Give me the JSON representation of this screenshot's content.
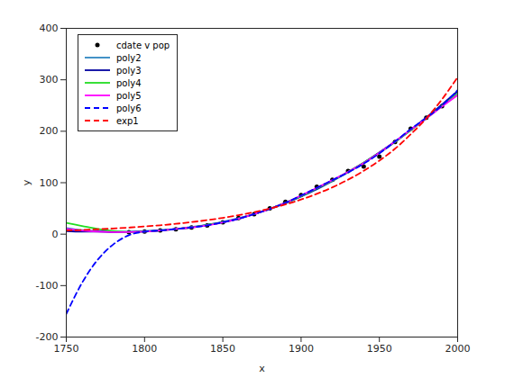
{
  "chart_data": {
    "type": "line",
    "x_label": "x",
    "y_label": "y",
    "xlim": [
      1750,
      2000
    ],
    "xticks": [
      1750,
      1800,
      1850,
      1900,
      1950,
      2000
    ],
    "ylim": [
      -200,
      400
    ],
    "yticks": [
      -200,
      -100,
      0,
      100,
      200,
      300,
      400
    ],
    "grid": false,
    "legend": "top-left",
    "series": [
      {
        "name": "cdate v pop",
        "type": "scatter",
        "marker": "dot",
        "color": "#000000",
        "x": [
          1790,
          1800,
          1810,
          1820,
          1830,
          1840,
          1850,
          1860,
          1870,
          1880,
          1890,
          1900,
          1910,
          1920,
          1930,
          1940,
          1950,
          1960,
          1970,
          1980,
          1990
        ],
        "values": [
          3.9,
          5.3,
          7.2,
          9.6,
          12.9,
          17.1,
          23.1,
          31.4,
          38.6,
          50.2,
          62.9,
          76.0,
          92.0,
          105.7,
          122.8,
          131.7,
          150.7,
          179.0,
          205.0,
          226.5,
          248.7
        ]
      },
      {
        "name": "poly2",
        "type": "line",
        "line_style": "solid",
        "color": "#2e86c1",
        "x": [
          1750,
          1760,
          1770,
          1780,
          1790,
          1800,
          1810,
          1820,
          1830,
          1840,
          1850,
          1860,
          1870,
          1880,
          1890,
          1900,
          1910,
          1920,
          1930,
          1940,
          1950,
          1960,
          1970,
          1980,
          1990,
          2000
        ],
        "values": [
          12,
          8,
          6,
          5,
          5,
          6,
          8,
          10,
          14,
          18,
          24,
          31,
          39,
          49,
          60,
          73,
          87,
          103,
          120,
          138,
          158,
          179,
          202,
          226,
          251,
          276
        ]
      },
      {
        "name": "poly3",
        "type": "line",
        "line_style": "solid",
        "color": "#0000a0",
        "x": [
          1750,
          1760,
          1770,
          1780,
          1790,
          1800,
          1810,
          1820,
          1830,
          1840,
          1850,
          1860,
          1870,
          1880,
          1890,
          1900,
          1910,
          1920,
          1930,
          1940,
          1950,
          1960,
          1970,
          1980,
          1990,
          2000
        ],
        "values": [
          6,
          5,
          5,
          4,
          4,
          5,
          7,
          10,
          13,
          18,
          23,
          30,
          39,
          49,
          61,
          74,
          88,
          104,
          121,
          139,
          159,
          180,
          203,
          227,
          252,
          278
        ]
      },
      {
        "name": "poly4",
        "type": "line",
        "line_style": "solid",
        "color": "#22dd22",
        "x": [
          1750,
          1760,
          1770,
          1780,
          1790,
          1800,
          1810,
          1820,
          1830,
          1840,
          1850,
          1860,
          1870,
          1880,
          1890,
          1900,
          1910,
          1920,
          1930,
          1940,
          1950,
          1960,
          1970,
          1980,
          1990,
          2000
        ],
        "values": [
          22,
          16,
          10,
          6,
          4,
          5,
          7,
          10,
          13,
          18,
          23,
          30,
          39,
          49,
          61,
          74,
          89,
          104,
          121,
          139,
          158,
          179,
          202,
          225,
          249,
          272
        ]
      },
      {
        "name": "poly5",
        "type": "line",
        "line_style": "solid",
        "color": "#ff00ff",
        "x": [
          1750,
          1760,
          1770,
          1780,
          1790,
          1800,
          1810,
          1820,
          1830,
          1840,
          1850,
          1860,
          1870,
          1880,
          1890,
          1900,
          1910,
          1920,
          1930,
          1940,
          1950,
          1960,
          1970,
          1980,
          1990,
          2000
        ],
        "values": [
          10,
          7,
          5,
          4,
          4,
          5,
          7,
          10,
          13,
          17,
          23,
          30,
          39,
          49,
          61,
          75,
          90,
          105,
          121,
          138,
          158,
          180,
          203,
          225,
          248,
          270
        ]
      },
      {
        "name": "poly6",
        "type": "line",
        "line_style": "dashed",
        "color": "#0000ff",
        "x": [
          1750,
          1760,
          1770,
          1780,
          1790,
          1800,
          1810,
          1820,
          1830,
          1840,
          1850,
          1860,
          1870,
          1880,
          1890,
          1900,
          1910,
          1920,
          1930,
          1940,
          1950,
          1960,
          1970,
          1980,
          1990,
          2000
        ],
        "values": [
          -155,
          -95,
          -50,
          -20,
          -2,
          5,
          7,
          10,
          13,
          17,
          23,
          30,
          39,
          49,
          61,
          75,
          90,
          105,
          120,
          137,
          157,
          180,
          204,
          226,
          250,
          280
        ]
      },
      {
        "name": "exp1",
        "type": "line",
        "line_style": "dashed",
        "color": "#ff0000",
        "x": [
          1750,
          1760,
          1770,
          1780,
          1790,
          1800,
          1810,
          1820,
          1830,
          1840,
          1850,
          1860,
          1870,
          1880,
          1890,
          1900,
          1910,
          1920,
          1930,
          1940,
          1950,
          1960,
          1970,
          1980,
          1990,
          2000
        ],
        "values": [
          7,
          8.1,
          9.5,
          11,
          12.8,
          14.9,
          17.3,
          20.1,
          23.4,
          27.2,
          31.7,
          36.8,
          42.8,
          49.8,
          57.9,
          67.3,
          78.3,
          91,
          105.9,
          123,
          143,
          166,
          194,
          225,
          262,
          305
        ]
      }
    ]
  }
}
